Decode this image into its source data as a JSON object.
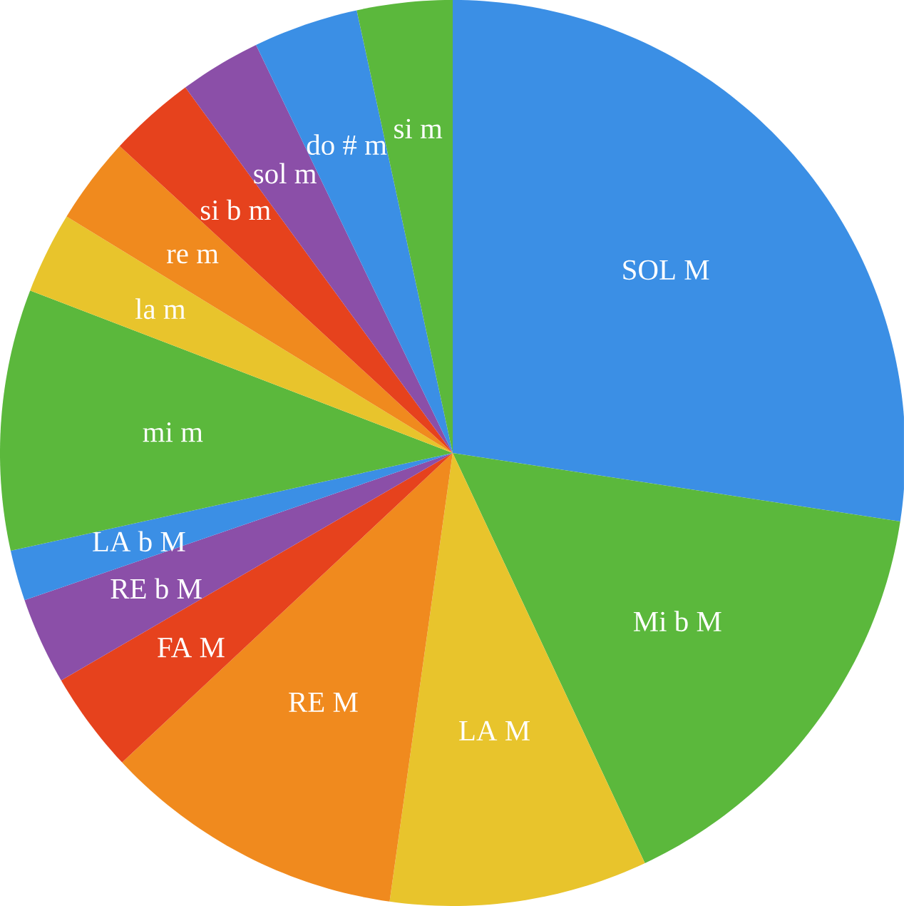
{
  "chart_data": {
    "type": "pie",
    "categories": [
      "SOL M",
      "Mi b M",
      "LA M",
      "RE M",
      "FA M",
      "RE b M",
      "LA b M",
      "mi m",
      "la m",
      "re m",
      "si b m",
      "sol m",
      "do # m",
      "si m"
    ],
    "values": [
      27.4,
      15.6,
      9.2,
      10.8,
      3.6,
      3.1,
      1.8,
      9.3,
      2.9,
      3.1,
      3.1,
      2.9,
      3.75,
      3.4
    ],
    "colors": [
      "#3b8fe5",
      "#5bb83c",
      "#e8c42c",
      "#f08a1e",
      "#e6421d",
      "#8b4fa8",
      "#3b8fe5",
      "#5bb83c",
      "#e8c42c",
      "#f08a1e",
      "#e6421d",
      "#8b4fa8",
      "#3b8fe5",
      "#5bb83c"
    ]
  }
}
